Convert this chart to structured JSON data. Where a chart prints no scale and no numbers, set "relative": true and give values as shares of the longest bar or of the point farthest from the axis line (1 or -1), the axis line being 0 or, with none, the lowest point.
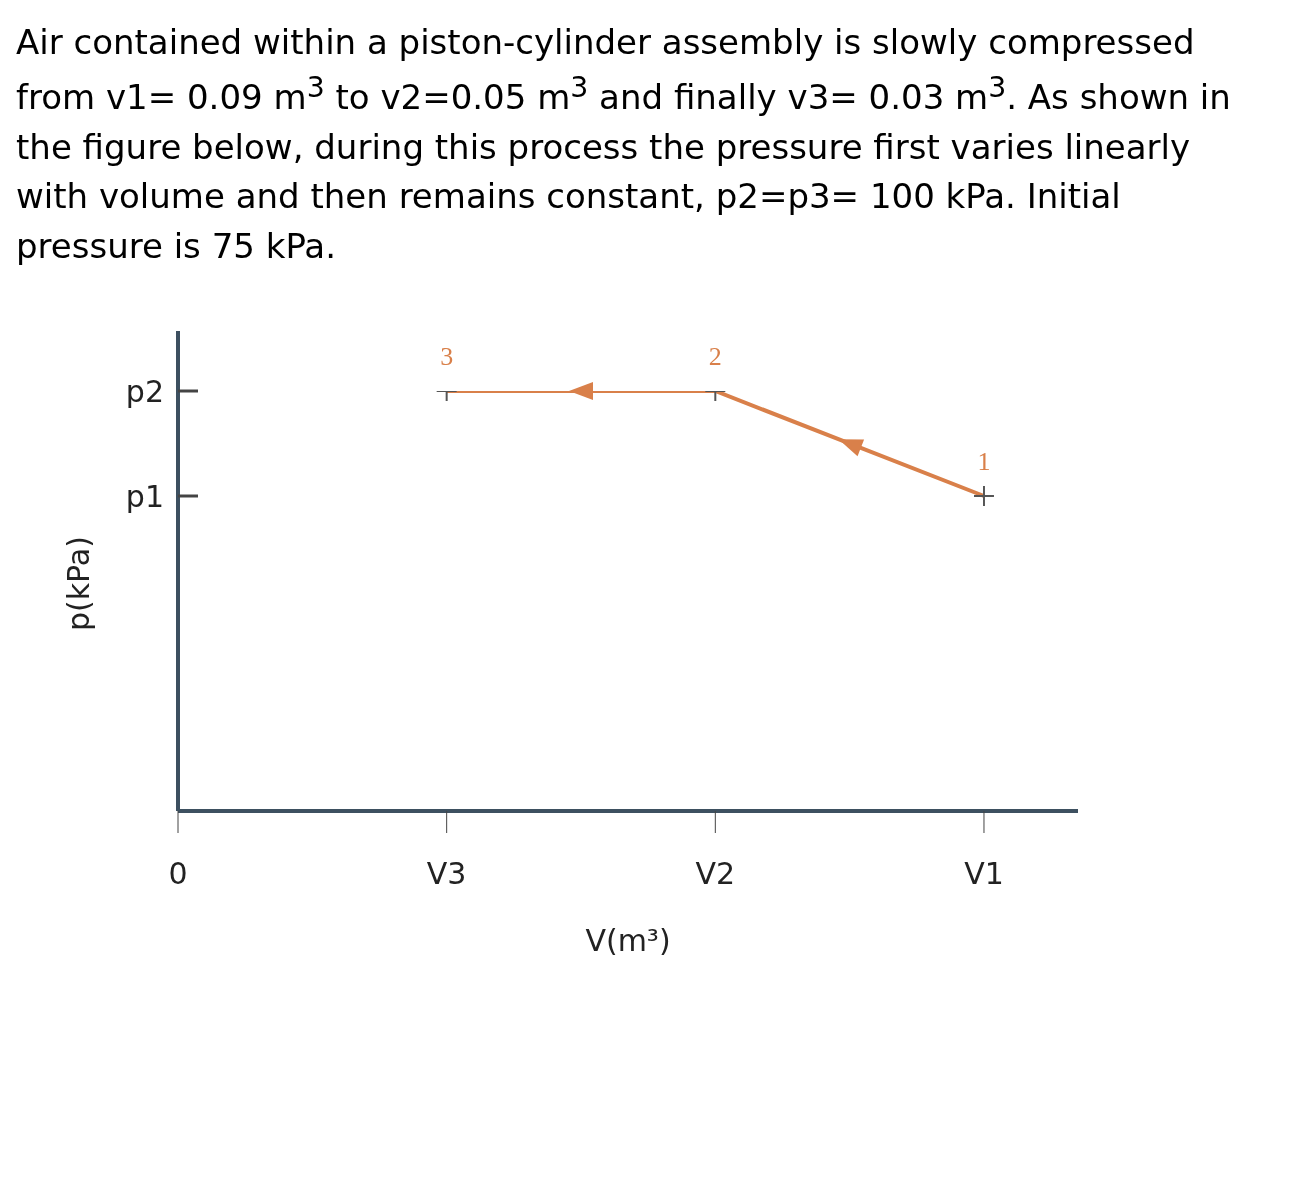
{
  "chart_data": {
    "type": "line",
    "title": "Air contained within a piston-cylinder assembly is slowly compressed from v1= 0.09 m$^{3}$ to v2=0.05 m$^{3}$ and finally v3= 0.03 m$^{3}$. As shown in the figure below, during this process the pressure first varies linearly with volume and then remains constant, p2=p3= 100 kPa. Initial pressure is 75 kPa.",
    "xlabel": "V(m³)",
    "ylabel": "p(kPa)",
    "relative": true,
    "categories": [
      "0",
      "V3",
      "V2",
      "V1"
    ],
    "series": [
      {
        "color": "#d9804a",
        "values": [
          null,
          1,
          1,
          0.75
        ]
      }
    ],
    "annotations": [
      {
        "text": "1",
        "x": "V1",
        "y": 0.75
      },
      {
        "text": "2",
        "x": "V2",
        "y": 1
      },
      {
        "text": "3",
        "x": "V3",
        "y": 1
      },
      "p1",
      "p2"
    ],
    "marker": "cross",
    "line_style": "solid"
  }
}
